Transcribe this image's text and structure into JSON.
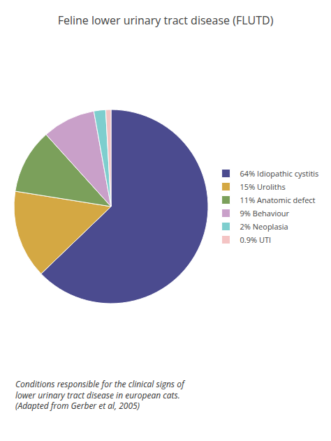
{
  "chart_data": {
    "type": "pie",
    "title": "Feline lower urinary tract disease (FLUTD)",
    "categories": [
      "64% Idiopathic cystitis",
      "15% Uroliths",
      "11% Anatomic defect",
      "9% Behaviour",
      "2% Neoplasia",
      "0.9% UTI"
    ],
    "values": [
      64,
      15,
      11,
      9,
      2,
      0.9
    ],
    "colors": [
      "#4b4b8f",
      "#d4a843",
      "#7ba05b",
      "#c9a0c9",
      "#7ecece",
      "#f4c4c4"
    ],
    "legend": "right",
    "annotations": [
      "Conditions responsible for the clinical signs of",
      "lower urinary tract disease in european cats.",
      "(Adapted from Gerber et al, 2005)"
    ]
  }
}
